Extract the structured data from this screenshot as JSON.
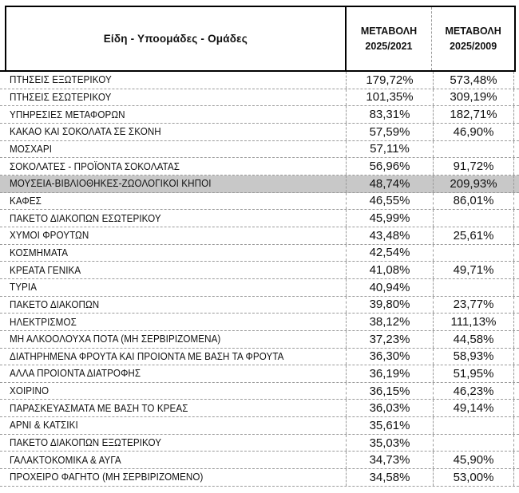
{
  "table": {
    "header": {
      "items_label": "Είδη - Υποομάδες - Ομάδες",
      "col2": {
        "line1": "ΜΕΤΑΒΟΛΗ",
        "line2": "2025/2021"
      },
      "col3": {
        "line1": "ΜΕΤΑΒΟΛΗ",
        "line2": "2025/2009"
      }
    },
    "rows": [
      {
        "name": "ΠΤΗΣΕΙΣ ΕΞΩΤΕΡΙΚΟΥ",
        "change_2025_2021": "179,72%",
        "change_2025_2009": "573,48%",
        "highlighted": false
      },
      {
        "name": "ΠΤΗΣΕΙΣ ΕΣΩΤΕΡΙΚΟΥ",
        "change_2025_2021": "101,35%",
        "change_2025_2009": "309,19%",
        "highlighted": false
      },
      {
        "name": "ΥΠΗΡΕΣΙΕΣ ΜΕΤΑΦΟΡΩΝ",
        "change_2025_2021": "83,31%",
        "change_2025_2009": "182,71%",
        "highlighted": false
      },
      {
        "name": "ΚΑΚΑΟ ΚΑΙ ΣΟΚΟΛΑΤΑ ΣΕ ΣΚΟΝΗ",
        "change_2025_2021": "57,59%",
        "change_2025_2009": "46,90%",
        "highlighted": false
      },
      {
        "name": "ΜΟΣΧΑΡΙ",
        "change_2025_2021": "57,11%",
        "change_2025_2009": "",
        "highlighted": false
      },
      {
        "name": "ΣΟΚΟΛΑΤΕΣ - ΠΡΟΪΟΝΤΑ ΣΟΚΟΛΑΤΑΣ",
        "change_2025_2021": "56,96%",
        "change_2025_2009": "91,72%",
        "highlighted": false
      },
      {
        "name": "ΜΟΥΣΕΙΑ-ΒΙΒΛΙΟΘΗΚΕΣ-ΖΩΟΛΟΓΙΚΟΙ ΚΗΠΟΙ",
        "change_2025_2021": "48,74%",
        "change_2025_2009": "209,93%",
        "highlighted": true
      },
      {
        "name": "ΚΑΦΕΣ",
        "change_2025_2021": "46,55%",
        "change_2025_2009": "86,01%",
        "highlighted": false
      },
      {
        "name": "ΠΑΚΕΤΟ ΔΙΑΚΟΠΩΝ ΕΣΩΤΕΡΙΚΟΥ",
        "change_2025_2021": "45,99%",
        "change_2025_2009": "",
        "highlighted": false
      },
      {
        "name": "ΧΥΜΟΙ ΦΡΟΥΤΩΝ",
        "change_2025_2021": "43,48%",
        "change_2025_2009": "25,61%",
        "highlighted": false
      },
      {
        "name": "ΚΟΣΜΗΜΑΤΑ",
        "change_2025_2021": "42,54%",
        "change_2025_2009": "",
        "highlighted": false
      },
      {
        "name": "ΚΡΕΑΤΑ ΓΕΝΙΚΑ",
        "change_2025_2021": "41,08%",
        "change_2025_2009": "49,71%",
        "highlighted": false
      },
      {
        "name": "ΤΥΡΙΑ",
        "change_2025_2021": "40,94%",
        "change_2025_2009": "",
        "highlighted": false
      },
      {
        "name": "ΠΑΚΕΤΟ ΔΙΑΚΟΠΩΝ",
        "change_2025_2021": "39,80%",
        "change_2025_2009": "23,77%",
        "highlighted": false
      },
      {
        "name": "ΗΛΕΚΤΡΙΣΜΟΣ",
        "change_2025_2021": "38,12%",
        "change_2025_2009": "111,13%",
        "highlighted": false
      },
      {
        "name": "ΜΗ ΑΛΚΟΟΛΟΥΧΑ ΠΟΤΑ (ΜΗ ΣΕΡΒΙΡΙΖΟΜΕΝΑ)",
        "change_2025_2021": "37,23%",
        "change_2025_2009": "44,58%",
        "highlighted": false
      },
      {
        "name": "ΔΙΑΤΗΡΗΜΕΝΑ ΦΡΟΥΤΑ ΚΑΙ ΠΡΟΙΟΝΤΑ ΜΕ ΒΑΣΗ ΤΑ ΦΡΟΥΤΑ",
        "change_2025_2021": "36,30%",
        "change_2025_2009": "58,93%",
        "highlighted": false
      },
      {
        "name": "ΑΛΛΑ ΠΡΟΙΟΝΤΑ ΔΙΑΤΡΟΦΗΣ",
        "change_2025_2021": "36,19%",
        "change_2025_2009": "51,95%",
        "highlighted": false
      },
      {
        "name": "ΧΟΙΡΙΝΟ",
        "change_2025_2021": "36,15%",
        "change_2025_2009": "46,23%",
        "highlighted": false
      },
      {
        "name": "ΠΑΡΑΣΚΕΥΑΣΜΑΤΑ ΜΕ ΒΑΣΗ ΤΟ ΚΡΕΑΣ",
        "change_2025_2021": "36,03%",
        "change_2025_2009": "49,14%",
        "highlighted": false
      },
      {
        "name": "ΑΡΝΙ & ΚΑΤΣΙΚΙ",
        "change_2025_2021": "35,61%",
        "change_2025_2009": "",
        "highlighted": false
      },
      {
        "name": "ΠΑΚΕΤΟ ΔΙΑΚΟΠΩΝ ΕΞΩΤΕΡΙΚΟΥ",
        "change_2025_2021": "35,03%",
        "change_2025_2009": "",
        "highlighted": false
      },
      {
        "name": "ΓΑΛΑΚΤΟΚΟΜΙΚΑ & ΑΥΓΑ",
        "change_2025_2021": "34,73%",
        "change_2025_2009": "45,90%",
        "highlighted": false
      },
      {
        "name": "ΠΡΟΧΕΙΡΟ ΦΑΓΗΤΟ (ΜΗ ΣΕΡΒΙΡΙΖΟΜΕΝΟ)",
        "change_2025_2021": "34,58%",
        "change_2025_2009": "53,00%",
        "highlighted": false
      }
    ]
  },
  "colors": {
    "highlight_row_background": "#c8c8c8",
    "grid_dashed_line": "#9a9a9a",
    "header_border": "#000000",
    "text": "#111111"
  }
}
